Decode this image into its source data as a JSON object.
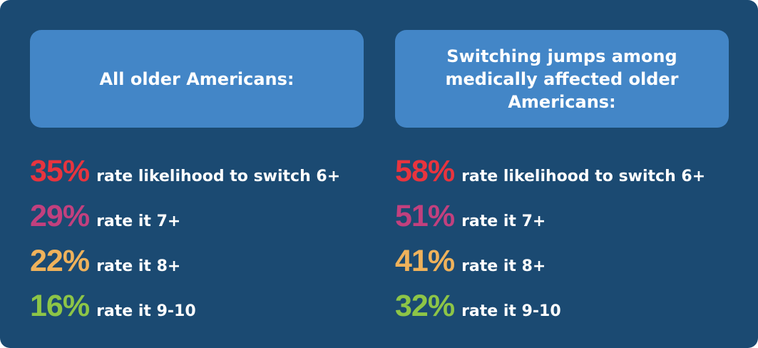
{
  "colors": {
    "background": "#1b4a72",
    "header_box": "#4386c7",
    "text": "#ffffff",
    "pct_6plus": "#e8343e",
    "pct_7plus": "#c2407e",
    "pct_8plus": "#efb25b",
    "pct_9to10": "#8dc547"
  },
  "left": {
    "header": "All older Americans:",
    "stats": [
      {
        "pct": "35%",
        "desc": "rate likelihood to switch 6+",
        "color": "#e8343e"
      },
      {
        "pct": "29%",
        "desc": "rate it 7+",
        "color": "#c2407e"
      },
      {
        "pct": "22%",
        "desc": "rate it 8+",
        "color": "#efb25b"
      },
      {
        "pct": "16%",
        "desc": "rate it 9-10",
        "color": "#8dc547"
      }
    ]
  },
  "right": {
    "header": "Switching jumps among medically affected older Americans:",
    "stats": [
      {
        "pct": "58%",
        "desc": "rate likelihood to switch 6+",
        "color": "#e8343e"
      },
      {
        "pct": "51%",
        "desc": "rate it 7+",
        "color": "#c2407e"
      },
      {
        "pct": "41%",
        "desc": "rate it 8+",
        "color": "#efb25b"
      },
      {
        "pct": "32%",
        "desc": "rate it 9-10",
        "color": "#8dc547"
      }
    ]
  }
}
